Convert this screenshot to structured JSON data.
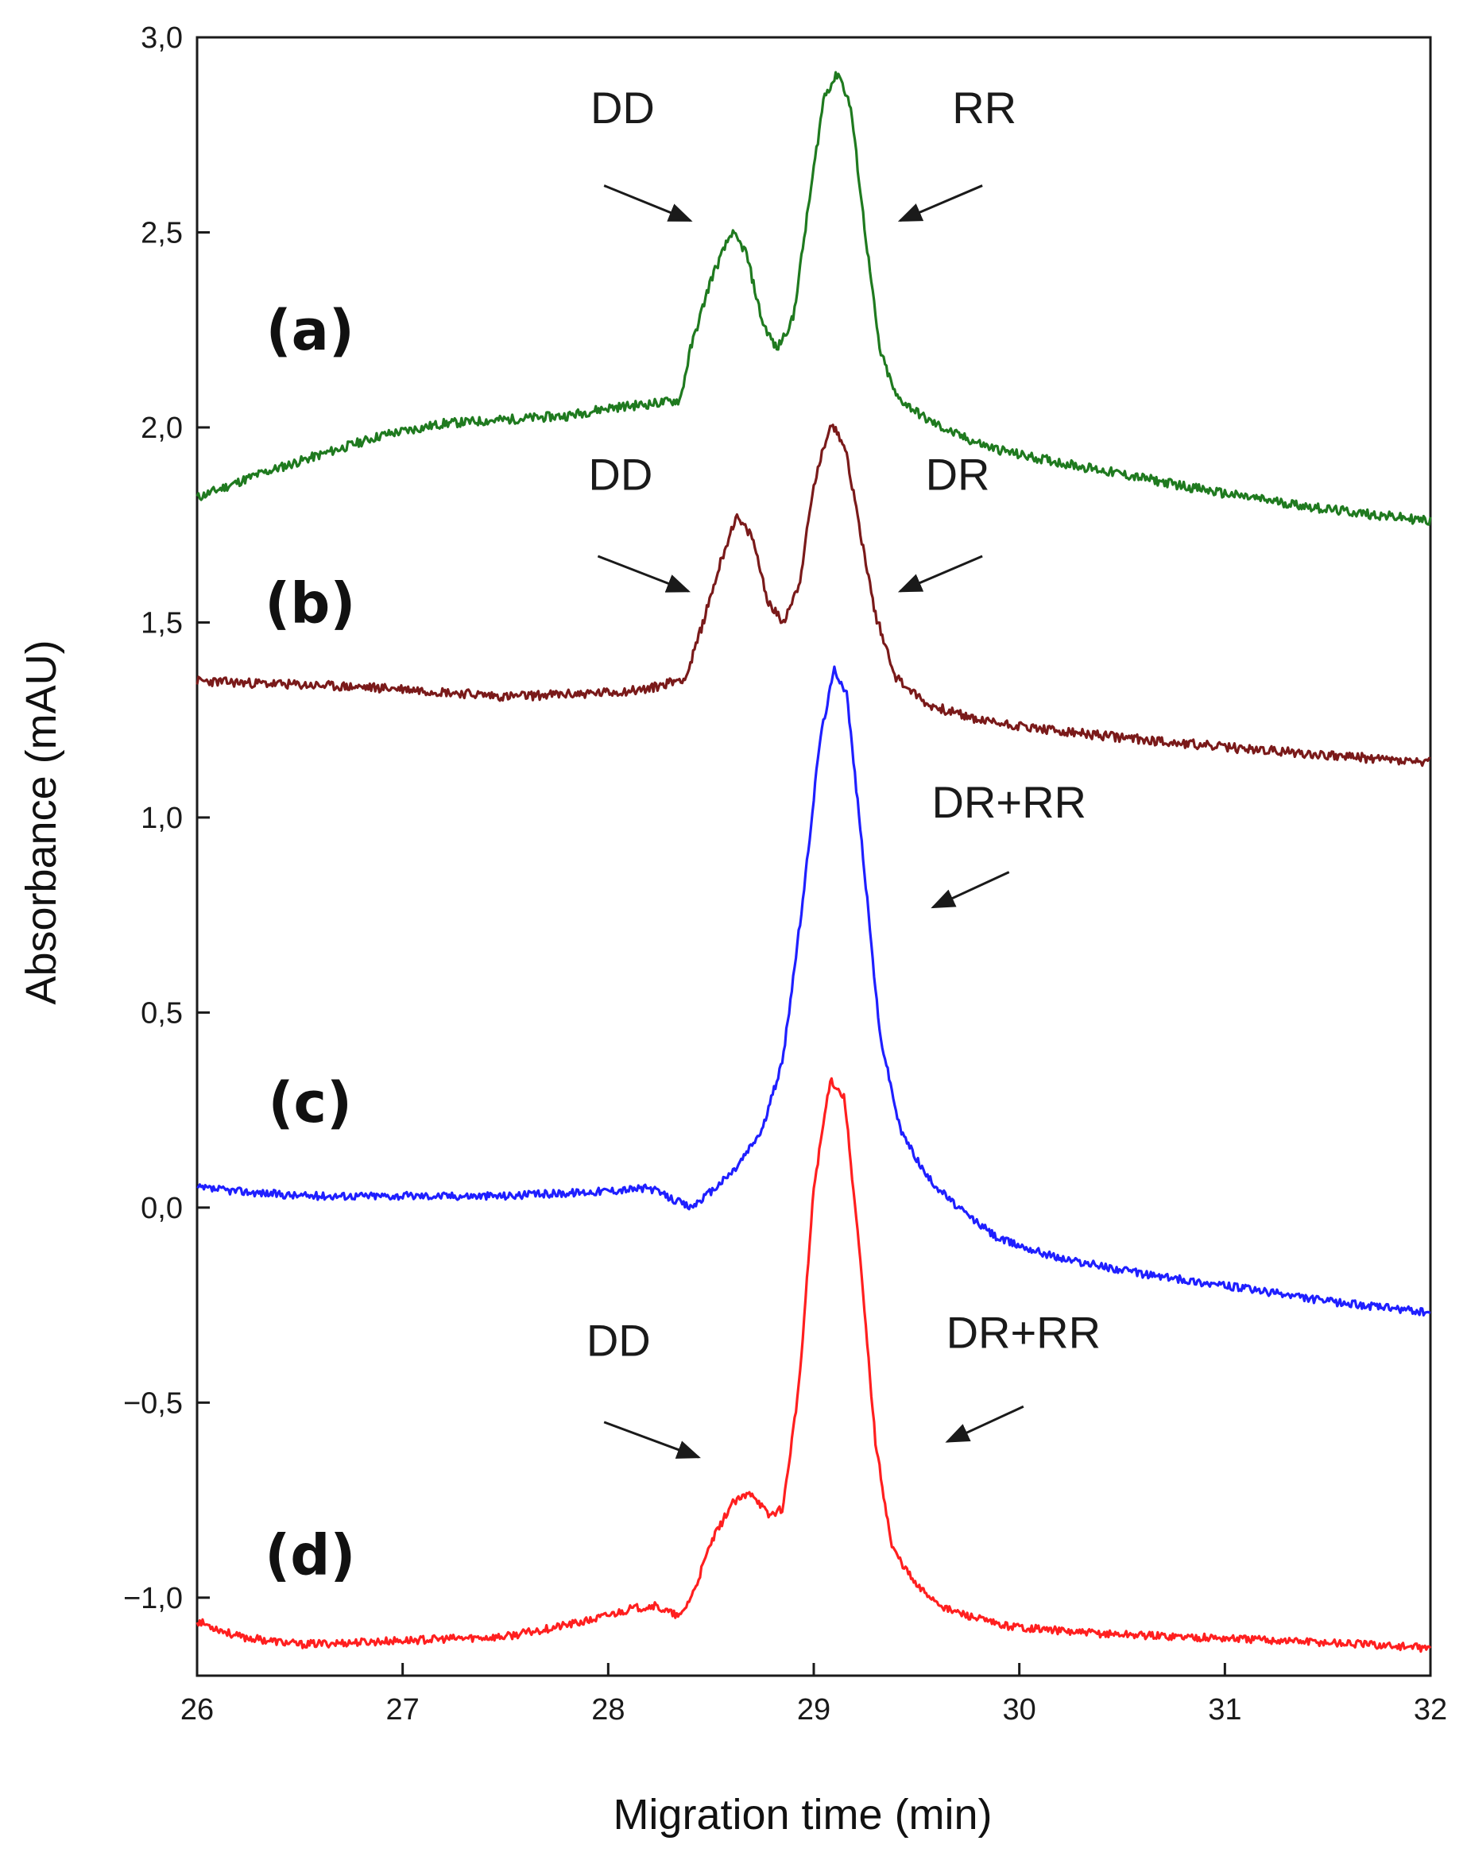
{
  "chart_data": {
    "type": "line",
    "title": "",
    "xlabel": "Migration time (min)",
    "ylabel": "Absorbance (mAU)",
    "xlim": [
      26,
      32
    ],
    "ylim": [
      -1.2,
      3.0
    ],
    "grid": false,
    "x_ticks": [
      26,
      27,
      28,
      29,
      30,
      31,
      32
    ],
    "x_tick_labels": [
      "26",
      "27",
      "28",
      "29",
      "30",
      "31",
      "32"
    ],
    "y_ticks": [
      3.0,
      2.5,
      2.0,
      1.5,
      1.0,
      0.5,
      0.0,
      -0.5,
      -1.0
    ],
    "y_tick_labels": [
      "3,0",
      "2,5",
      "2,0",
      "1,5",
      "1,0",
      "0,5",
      "0,0",
      "−0,5",
      "−1,0"
    ],
    "series": [
      {
        "name": "(a)",
        "label": "(a)",
        "color": "#1f7a1f",
        "noise": 0.012,
        "noise_seed": 11,
        "points": [
          [
            26.0,
            1.82
          ],
          [
            26.3,
            1.88
          ],
          [
            26.6,
            1.93
          ],
          [
            26.9,
            1.98
          ],
          [
            27.2,
            2.01
          ],
          [
            27.5,
            2.02
          ],
          [
            27.8,
            2.03
          ],
          [
            28.0,
            2.05
          ],
          [
            28.2,
            2.06
          ],
          [
            28.35,
            2.07
          ],
          [
            28.4,
            2.2
          ],
          [
            28.5,
            2.38
          ],
          [
            28.6,
            2.5
          ],
          [
            28.67,
            2.45
          ],
          [
            28.75,
            2.27
          ],
          [
            28.82,
            2.2
          ],
          [
            28.9,
            2.28
          ],
          [
            28.97,
            2.55
          ],
          [
            29.05,
            2.85
          ],
          [
            29.12,
            2.91
          ],
          [
            29.18,
            2.82
          ],
          [
            29.25,
            2.5
          ],
          [
            29.32,
            2.2
          ],
          [
            29.4,
            2.08
          ],
          [
            29.55,
            2.02
          ],
          [
            29.7,
            1.98
          ],
          [
            29.85,
            1.95
          ],
          [
            30.0,
            1.93
          ],
          [
            30.5,
            1.88
          ],
          [
            31.0,
            1.83
          ],
          [
            31.5,
            1.79
          ],
          [
            32.0,
            1.76
          ]
        ]
      },
      {
        "name": "(b)",
        "label": "(b)",
        "color": "#7a1a1a",
        "noise": 0.012,
        "noise_seed": 23,
        "points": [
          [
            26.0,
            1.35
          ],
          [
            26.5,
            1.34
          ],
          [
            27.0,
            1.33
          ],
          [
            27.5,
            1.31
          ],
          [
            28.0,
            1.32
          ],
          [
            28.2,
            1.33
          ],
          [
            28.38,
            1.36
          ],
          [
            28.45,
            1.48
          ],
          [
            28.55,
            1.66
          ],
          [
            28.62,
            1.77
          ],
          [
            28.7,
            1.72
          ],
          [
            28.78,
            1.55
          ],
          [
            28.85,
            1.5
          ],
          [
            28.93,
            1.6
          ],
          [
            29.0,
            1.85
          ],
          [
            29.08,
            2.01
          ],
          [
            29.15,
            1.96
          ],
          [
            29.22,
            1.75
          ],
          [
            29.3,
            1.52
          ],
          [
            29.4,
            1.36
          ],
          [
            29.55,
            1.29
          ],
          [
            29.8,
            1.25
          ],
          [
            30.2,
            1.22
          ],
          [
            30.6,
            1.2
          ],
          [
            31.0,
            1.18
          ],
          [
            31.5,
            1.16
          ],
          [
            32.0,
            1.14
          ]
        ]
      },
      {
        "name": "(c)",
        "label": "(c)",
        "color": "#1f1fff",
        "noise": 0.01,
        "noise_seed": 37,
        "points": [
          [
            26.0,
            0.05
          ],
          [
            26.5,
            0.03
          ],
          [
            27.0,
            0.03
          ],
          [
            27.5,
            0.03
          ],
          [
            27.9,
            0.04
          ],
          [
            28.2,
            0.05
          ],
          [
            28.32,
            0.02
          ],
          [
            28.4,
            0.0
          ],
          [
            28.5,
            0.04
          ],
          [
            28.62,
            0.1
          ],
          [
            28.75,
            0.2
          ],
          [
            28.85,
            0.38
          ],
          [
            28.95,
            0.8
          ],
          [
            29.03,
            1.2
          ],
          [
            29.1,
            1.38
          ],
          [
            29.16,
            1.32
          ],
          [
            29.24,
            0.9
          ],
          [
            29.32,
            0.45
          ],
          [
            29.42,
            0.2
          ],
          [
            29.55,
            0.08
          ],
          [
            29.7,
            0.0
          ],
          [
            29.9,
            -0.08
          ],
          [
            30.2,
            -0.13
          ],
          [
            30.6,
            -0.17
          ],
          [
            31.0,
            -0.2
          ],
          [
            31.5,
            -0.24
          ],
          [
            32.0,
            -0.27
          ]
        ]
      },
      {
        "name": "(d)",
        "label": "(d)",
        "color": "#ff1f1f",
        "noise": 0.01,
        "noise_seed": 53,
        "points": [
          [
            26.0,
            -1.06
          ],
          [
            26.2,
            -1.1
          ],
          [
            26.5,
            -1.12
          ],
          [
            27.0,
            -1.11
          ],
          [
            27.5,
            -1.1
          ],
          [
            27.9,
            -1.06
          ],
          [
            28.1,
            -1.03
          ],
          [
            28.22,
            -1.02
          ],
          [
            28.35,
            -1.05
          ],
          [
            28.42,
            -0.98
          ],
          [
            28.5,
            -0.86
          ],
          [
            28.6,
            -0.76
          ],
          [
            28.7,
            -0.73
          ],
          [
            28.78,
            -0.79
          ],
          [
            28.85,
            -0.77
          ],
          [
            28.93,
            -0.45
          ],
          [
            29.0,
            0.05
          ],
          [
            29.08,
            0.33
          ],
          [
            29.15,
            0.28
          ],
          [
            29.22,
            -0.1
          ],
          [
            29.3,
            -0.6
          ],
          [
            29.38,
            -0.87
          ],
          [
            29.5,
            -0.97
          ],
          [
            29.65,
            -1.03
          ],
          [
            29.9,
            -1.07
          ],
          [
            30.3,
            -1.09
          ],
          [
            30.8,
            -1.1
          ],
          [
            31.3,
            -1.11
          ],
          [
            31.7,
            -1.12
          ],
          [
            32.0,
            -1.13
          ]
        ]
      }
    ],
    "trace_labels": [
      {
        "text": "(a)",
        "x": 26.55,
        "y": 2.2
      },
      {
        "text": "(b)",
        "x": 26.55,
        "y": 1.5
      },
      {
        "text": "(c)",
        "x": 26.55,
        "y": 0.22
      },
      {
        "text": "(d)",
        "x": 26.55,
        "y": -0.94
      }
    ],
    "annotations": [
      {
        "text": "DD",
        "text_x": 28.07,
        "text_y": 2.78,
        "arrow_from": [
          27.98,
          2.62
        ],
        "arrow_to": [
          28.4,
          2.53
        ]
      },
      {
        "text": "RR",
        "text_x": 29.83,
        "text_y": 2.78,
        "arrow_from": [
          29.82,
          2.62
        ],
        "arrow_to": [
          29.42,
          2.53
        ]
      },
      {
        "text": "DD",
        "text_x": 28.06,
        "text_y": 1.84,
        "arrow_from": [
          27.95,
          1.67
        ],
        "arrow_to": [
          28.39,
          1.58
        ]
      },
      {
        "text": "DR",
        "text_x": 29.7,
        "text_y": 1.84,
        "arrow_from": [
          29.82,
          1.67
        ],
        "arrow_to": [
          29.42,
          1.58
        ]
      },
      {
        "text": "DR+RR",
        "text_x": 29.95,
        "text_y": 1.0,
        "arrow_from": [
          29.95,
          0.86
        ],
        "arrow_to": [
          29.58,
          0.77
        ]
      },
      {
        "text": "DD",
        "text_x": 28.05,
        "text_y": -0.38,
        "arrow_from": [
          27.98,
          -0.55
        ],
        "arrow_to": [
          28.44,
          -0.64
        ]
      },
      {
        "text": "DR+RR",
        "text_x": 30.02,
        "text_y": -0.36,
        "arrow_from": [
          30.02,
          -0.51
        ],
        "arrow_to": [
          29.65,
          -0.6
        ]
      }
    ]
  }
}
